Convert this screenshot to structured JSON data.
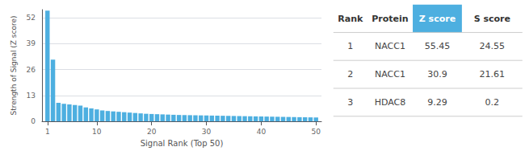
{
  "chart_data": [
    {
      "type": "bar",
      "xlabel": "Signal Rank (Top 50)",
      "ylabel": "Strength of Signal (Z score)",
      "x": [
        1,
        2,
        3,
        4,
        5,
        6,
        7,
        8,
        9,
        10,
        11,
        12,
        13,
        14,
        15,
        16,
        17,
        18,
        19,
        20,
        21,
        22,
        23,
        24,
        25,
        26,
        27,
        28,
        29,
        30,
        31,
        32,
        33,
        34,
        35,
        36,
        37,
        38,
        39,
        40,
        41,
        42,
        43,
        44,
        45,
        46,
        47,
        48,
        49,
        50
      ],
      "values": [
        55.45,
        30.9,
        9.29,
        8.8,
        8.5,
        8.2,
        7.9,
        7.0,
        6.5,
        6.0,
        5.5,
        5.2,
        5.0,
        4.8,
        4.6,
        4.4,
        4.2,
        4.0,
        3.8,
        3.7,
        3.6,
        3.5,
        3.4,
        3.3,
        3.2,
        3.15,
        3.1,
        3.05,
        3.0,
        2.95,
        2.9,
        2.85,
        2.8,
        2.75,
        2.7,
        2.65,
        2.6,
        2.55,
        2.5,
        2.45,
        2.4,
        2.35,
        2.3,
        2.25,
        2.2,
        2.15,
        2.1,
        2.05,
        2.0,
        1.95
      ],
      "color": "#4DAFE0",
      "xlim": [
        0,
        51
      ],
      "xticks": [
        1,
        10,
        20,
        30,
        40,
        50
      ],
      "ylim": [
        0,
        56
      ],
      "yticks": [
        0,
        13,
        26,
        39,
        52
      ],
      "grid": true
    },
    {
      "type": "table",
      "columns": [
        "Rank",
        "Protein",
        "Z score",
        "S score"
      ],
      "rows": [
        [
          "1",
          "NACC1",
          "55.45",
          "24.55"
        ],
        [
          "2",
          "NACC1",
          "30.9",
          "21.61"
        ],
        [
          "3",
          "HDAC8",
          "9.29",
          "0.2"
        ]
      ],
      "color": "#4DAFE0"
    }
  ]
}
